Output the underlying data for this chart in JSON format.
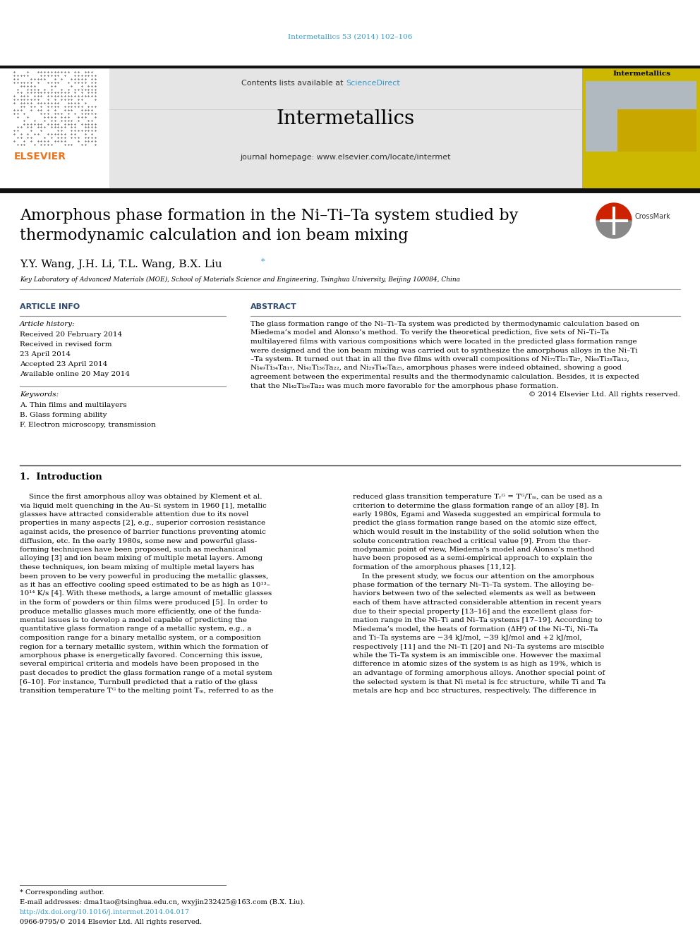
{
  "page_width": 9.92,
  "page_height": 13.23,
  "dpi": 100,
  "bg_color": "#ffffff",
  "top_url": "Intermetallics 53 (2014) 102–106",
  "top_url_color": "#3399cc",
  "journal_header_bg": "#e5e5e5",
  "journal_name": "Intermetallics",
  "journal_homepage": "journal homepage: www.elsevier.com/locate/intermet",
  "contents_text": "Contents lists available at ",
  "science_direct": "ScienceDirect",
  "science_direct_color": "#3399cc",
  "header_bar_color": "#111111",
  "title_line1": "Amorphous phase formation in the Ni–Ti–Ta system studied by",
  "title_line2": "thermodynamic calculation and ion beam mixing",
  "title_fontsize": 16,
  "authors": "Y.Y. Wang, J.H. Li, T.L. Wang, B.X. Liu",
  "affiliation": "Key Laboratory of Advanced Materials (MOE), School of Materials Science and Engineering, Tsinghua University, Beijing 100084, China",
  "article_info_label": "ARTICLE INFO",
  "abstract_label": "ABSTRACT",
  "article_history_label": "Article history:",
  "received": "Received 20 February 2014",
  "revised": "Received in revised form",
  "revised2": "23 April 2014",
  "accepted": "Accepted 23 April 2014",
  "available": "Available online 20 May 2014",
  "keywords_label": "Keywords:",
  "keyword1": "A. Thin films and multilayers",
  "keyword2": "B. Glass forming ability",
  "keyword3": "F. Electron microscopy, transmission",
  "abstract_lines": [
    "The glass formation range of the Ni–Ti–Ta system was predicted by thermodynamic calculation based on",
    "Miedema’s model and Alonso’s method. To verify the theoretical prediction, five sets of Ni–Ti–Ta",
    "multilayered films with various compositions which were located in the predicted glass formation range",
    "were designed and the ion beam mixing was carried out to synthesize the amorphous alloys in the Ni–Ti",
    "–Ta system. It turned out that in all the five films with overall compositions of Ni₇₂Ti₂₁Ta₇, Ni₆₀Ti₂₈Ta₁₂,",
    "Ni₄₉Ti₃₄Ta₁₇, Ni₄₂Ti₃₆Ta₂₂, and Ni₂₉Ti₄₆Ta₂₅, amorphous phases were indeed obtained, showing a good",
    "agreement between the experimental results and the thermodynamic calculation. Besides, it is expected",
    "that the Ni₄₂Ti₃₆Ta₂₂ was much more favorable for the amorphous phase formation."
  ],
  "copyright": "© 2014 Elsevier Ltd. All rights reserved.",
  "section1_title": "1.  Introduction",
  "left_col_lines": [
    "    Since the first amorphous alloy was obtained by Klement et al.",
    "via liquid melt quenching in the Au–Si system in 1960 [1], metallic",
    "glasses have attracted considerable attention due to its novel",
    "properties in many aspects [2], e.g., superior corrosion resistance",
    "against acids, the presence of barrier functions preventing atomic",
    "diffusion, etc. In the early 1980s, some new and powerful glass-",
    "forming techniques have been proposed, such as mechanical",
    "alloying [3] and ion beam mixing of multiple metal layers. Among",
    "these techniques, ion beam mixing of multiple metal layers has",
    "been proven to be very powerful in producing the metallic glasses,",
    "as it has an effective cooling speed estimated to be as high as 10¹³–",
    "10¹⁴ K/s [4]. With these methods, a large amount of metallic glasses",
    "in the form of powders or thin films were produced [5]. In order to",
    "produce metallic glasses much more efficiently, one of the funda-",
    "mental issues is to develop a model capable of predicting the",
    "quantitative glass formation range of a metallic system, e.g., a",
    "composition range for a binary metallic system, or a composition",
    "region for a ternary metallic system, within which the formation of",
    "amorphous phase is energetically favored. Concerning this issue,",
    "several empirical criteria and models have been proposed in the",
    "past decades to predict the glass formation range of a metal system",
    "[6–10]. For instance, Turnbull predicted that a ratio of the glass",
    "transition temperature Tᴳ to the melting point Tₘ, referred to as the"
  ],
  "right_col_lines": [
    "reduced glass transition temperature Tᵣᴳ = Tᴳ/Tₘ, can be used as a",
    "criterion to determine the glass formation range of an alloy [8]. In",
    "early 1980s, Egami and Waseda suggested an empirical formula to",
    "predict the glass formation range based on the atomic size effect,",
    "which would result in the instability of the solid solution when the",
    "solute concentration reached a critical value [9]. From the ther-",
    "modynamic point of view, Miedema’s model and Alonso’s method",
    "have been proposed as a semi-empirical approach to explain the",
    "formation of the amorphous phases [11,12].",
    "    In the present study, we focus our attention on the amorphous",
    "phase formation of the ternary Ni–Ti–Ta system. The alloying be-",
    "haviors between two of the selected elements as well as between",
    "each of them have attracted considerable attention in recent years",
    "due to their special property [13–16] and the excellent glass for-",
    "mation range in the Ni–Ti and Ni–Ta systems [17–19]. According to",
    "Miedema’s model, the heats of formation (ΔHᶠ) of the Ni–Ti, Ni–Ta",
    "and Ti–Ta systems are −34 kJ/mol, −39 kJ/mol and +2 kJ/mol,",
    "respectively [11] and the Ni–Ti [20] and Ni–Ta systems are miscible",
    "while the Ti–Ta system is an immiscible one. However the maximal",
    "difference in atomic sizes of the system is as high as 19%, which is",
    "an advantage of forming amorphous alloys. Another special point of",
    "the selected system is that Ni metal is fcc structure, while Ti and Ta",
    "metals are hcp and bcc structures, respectively. The difference in"
  ],
  "footnote1": "* Corresponding author.",
  "footnote2": "E-mail addresses: dma1tao@tsinghua.edu.cn, wxyjin232425@163.com (B.X. Liu).",
  "doi_text": "http://dx.doi.org/10.1016/j.intermet.2014.04.017",
  "issn_text": "0966-9795/© 2014 Elsevier Ltd. All rights reserved.",
  "label_color": "#2e4a6e",
  "ref_color": "#3399cc",
  "text_color": "#000000"
}
